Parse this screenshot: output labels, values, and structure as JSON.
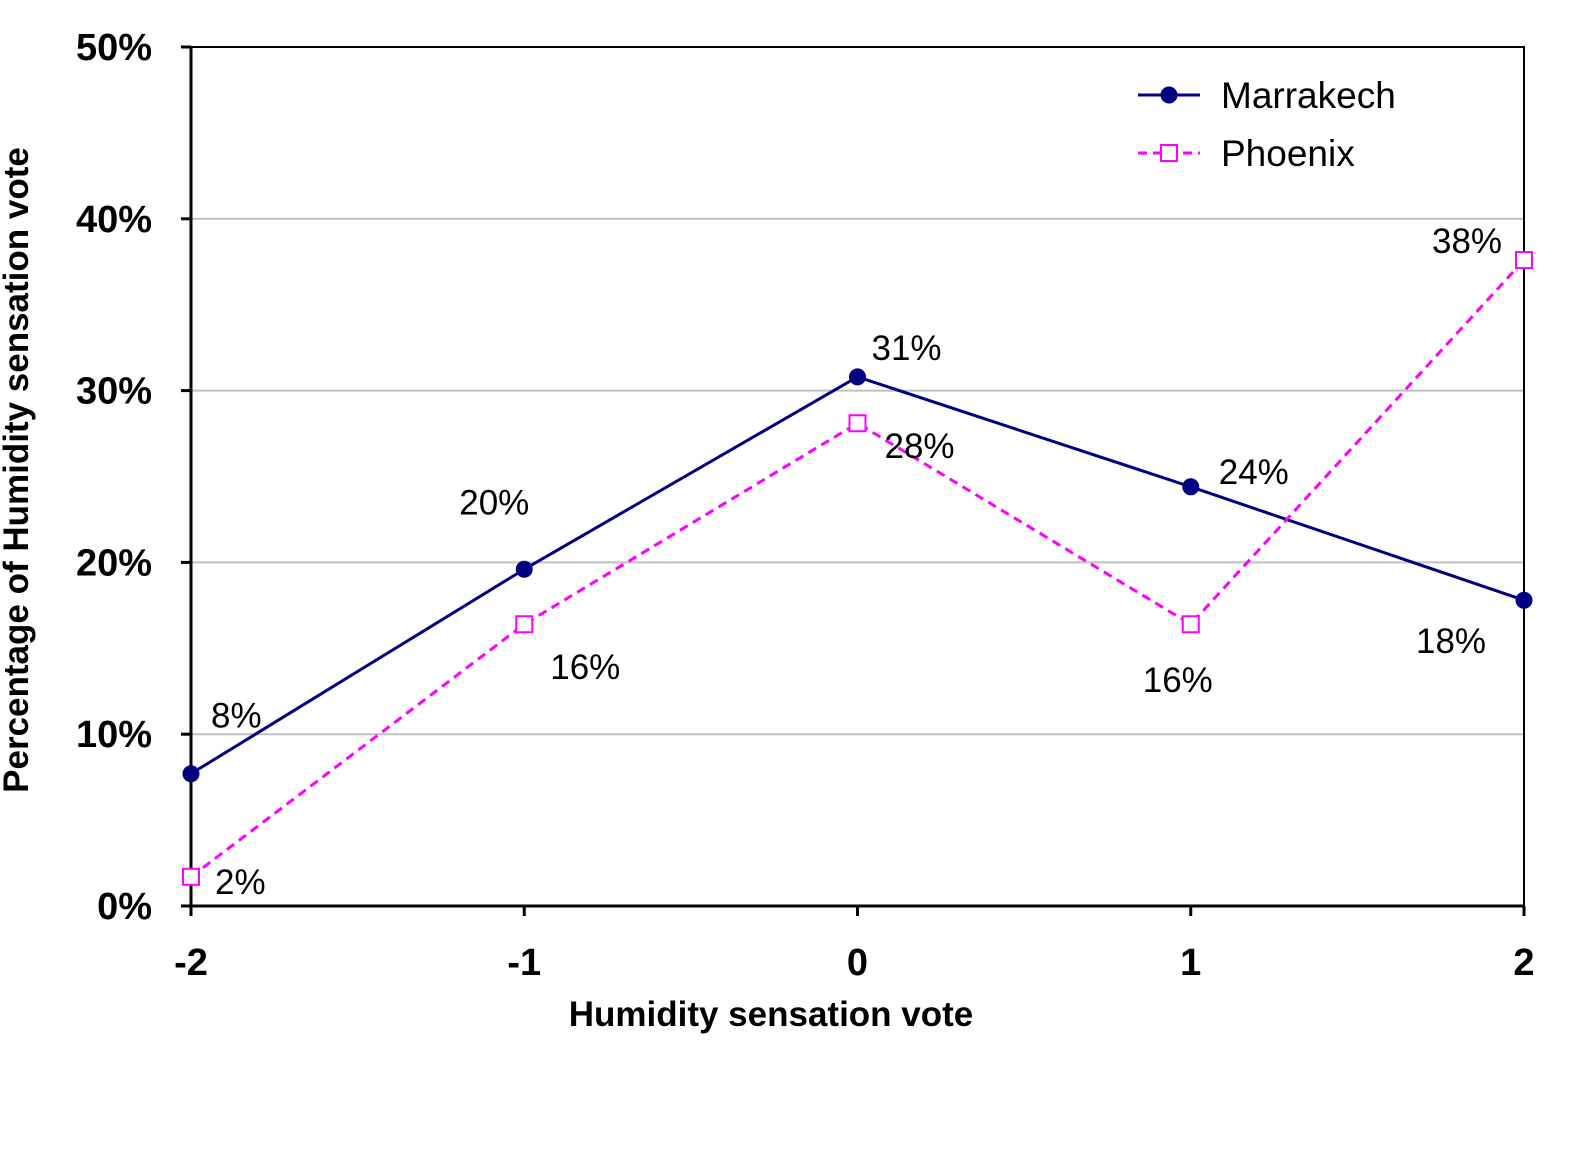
{
  "chart_data": {
    "type": "line",
    "title": "",
    "xlabel": "Humidity sensation vote",
    "ylabel": "Percentage of Humidity sensation vote",
    "x": [
      -2,
      -1,
      0,
      1,
      2
    ],
    "x_tick_labels": [
      "-2",
      "-1",
      "0",
      "1",
      "2"
    ],
    "xlim": [
      -2,
      2
    ],
    "ylim": [
      0,
      50
    ],
    "y_ticks": [
      0,
      10,
      20,
      30,
      40,
      50
    ],
    "y_tick_labels": [
      "0%",
      "10%",
      "20%",
      "30%",
      "40%",
      "50%"
    ],
    "grid": "horizontal",
    "legend_position": "top-right",
    "series": [
      {
        "name": "Marrakech",
        "color": "#000080",
        "line_style": "solid",
        "marker": "filled-circle",
        "values": [
          7.7,
          19.6,
          30.8,
          24.4,
          17.8
        ],
        "labels": [
          "8%",
          "20%",
          "31%",
          "24%",
          "18%"
        ]
      },
      {
        "name": "Phoenix",
        "color": "#FF00FF",
        "line_style": "dashed",
        "marker": "open-square",
        "values": [
          1.7,
          16.4,
          28.1,
          16.4,
          37.6
        ],
        "labels": [
          "2%",
          "16%",
          "28%",
          "16%",
          "38%"
        ]
      }
    ]
  }
}
